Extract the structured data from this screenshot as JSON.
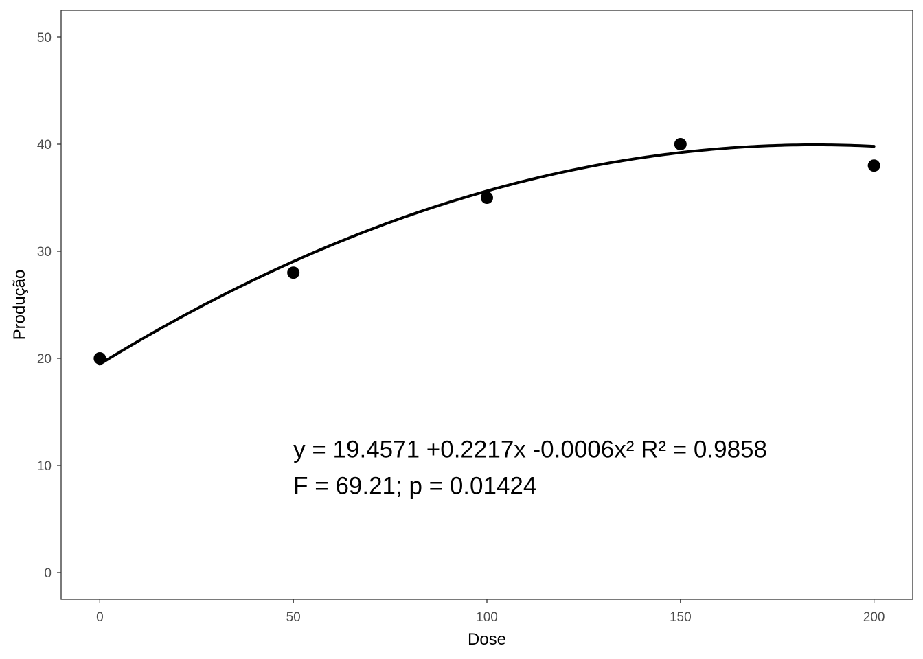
{
  "chart_data": {
    "type": "scatter",
    "xlabel": "Dose",
    "ylabel": "Produção",
    "xlim": [
      -10,
      210
    ],
    "ylim": [
      -2.5,
      52.5
    ],
    "x_ticks": [
      0,
      50,
      100,
      150,
      200
    ],
    "y_ticks": [
      0,
      10,
      20,
      30,
      40,
      50
    ],
    "grid": false,
    "points": {
      "x": [
        0,
        50,
        100,
        150,
        200
      ],
      "y": [
        20,
        28,
        35,
        40,
        38
      ]
    },
    "fit": {
      "type": "quadratic",
      "coefficients": [
        19.4571,
        0.2217,
        -0.0006
      ],
      "x_range": [
        0,
        200
      ]
    },
    "annotation": {
      "line1": "y = 19.4571 +0.2217x -0.0006x²  R² = 0.9858",
      "line2": "F = 69.21; p = 0.01424",
      "anchor": {
        "x": 50,
        "y1": 11.5,
        "y2": 8.1
      }
    },
    "colors": {
      "points": "#000000",
      "line": "#000000",
      "panel_border": "#333333"
    }
  }
}
